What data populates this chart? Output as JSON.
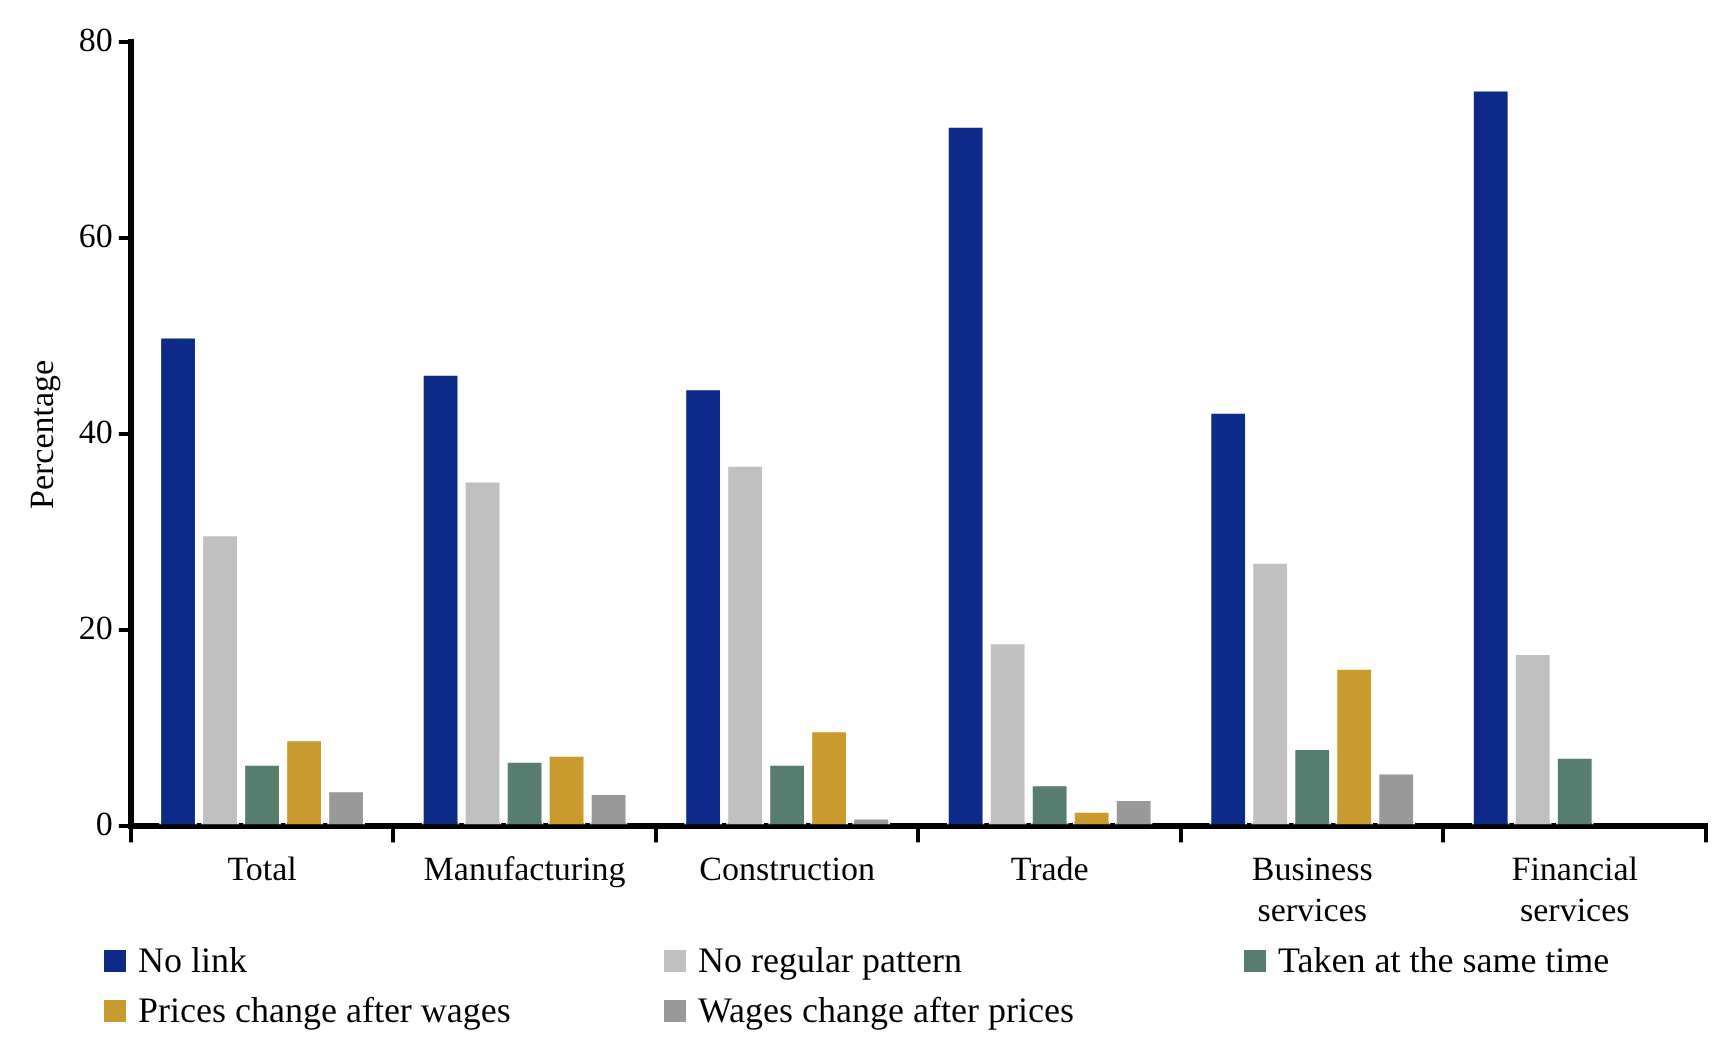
{
  "chart_data": {
    "type": "bar",
    "ylabel": "Percentage",
    "categories": [
      "Total",
      "Manufacturing",
      "Construction",
      "Trade",
      "Business services",
      "Financial services"
    ],
    "series": [
      {
        "name": "No link",
        "color": "#0d2a89",
        "values": [
          50.0,
          46.2,
          44.7,
          71.5,
          42.3,
          75.2
        ]
      },
      {
        "name": "No regular pattern",
        "color": "#c0c0c0",
        "values": [
          29.8,
          35.3,
          36.9,
          18.8,
          27.0,
          17.7
        ]
      },
      {
        "name": "Taken at the same time",
        "color": "#567d70",
        "values": [
          6.4,
          6.7,
          6.4,
          4.3,
          8.0,
          7.1
        ]
      },
      {
        "name": "Prices change after wages",
        "color": "#c99b2e",
        "values": [
          8.9,
          7.3,
          9.8,
          1.6,
          16.2,
          null
        ]
      },
      {
        "name": "Wages change after prices",
        "color": "#999999",
        "values": [
          3.7,
          3.4,
          0.9,
          2.8,
          5.5,
          null
        ]
      }
    ],
    "ylim": [
      0,
      80
    ],
    "yticks": [
      0,
      20,
      40,
      60,
      80
    ],
    "grid": false,
    "legend": "bottom"
  }
}
